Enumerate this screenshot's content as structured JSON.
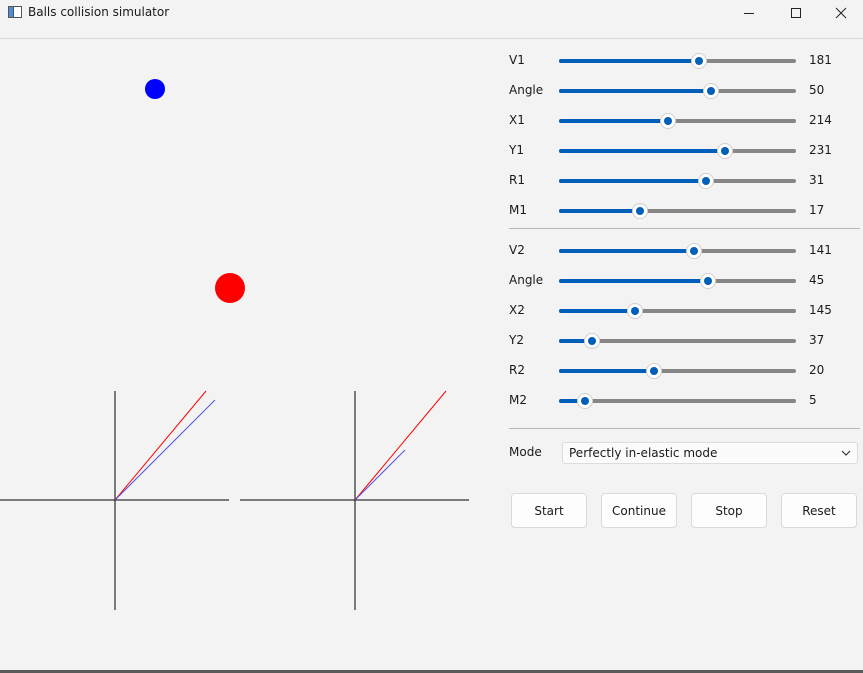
{
  "window": {
    "title": "Balls collision simulator"
  },
  "simulation": {
    "ball_colors": {
      "ball1": "#0000ff",
      "ball2": "#ff0000"
    },
    "ball1_vector_color": "#ff0000",
    "ball2_vector_color": "#5555dd"
  },
  "ball1": {
    "sliders": [
      {
        "label": "V1",
        "value": "181",
        "fraction": 0.59
      },
      {
        "label": "Angle",
        "value": "50",
        "fraction": 0.64
      },
      {
        "label": "X1",
        "value": "214",
        "fraction": 0.46
      },
      {
        "label": "Y1",
        "value": "231",
        "fraction": 0.7
      },
      {
        "label": "R1",
        "value": "31",
        "fraction": 0.62
      },
      {
        "label": "M1",
        "value": "17",
        "fraction": 0.34
      }
    ]
  },
  "ball2": {
    "sliders": [
      {
        "label": "V2",
        "value": "141",
        "fraction": 0.57
      },
      {
        "label": "Angle",
        "value": "45",
        "fraction": 0.63
      },
      {
        "label": "X2",
        "value": "145",
        "fraction": 0.32
      },
      {
        "label": "Y2",
        "value": "37",
        "fraction": 0.14
      },
      {
        "label": "R2",
        "value": "20",
        "fraction": 0.4
      },
      {
        "label": "M2",
        "value": "5",
        "fraction": 0.11
      }
    ]
  },
  "mode": {
    "label": "Mode",
    "selected": "Perfectly in-elastic mode"
  },
  "buttons": {
    "start": "Start",
    "continue": "Continue",
    "stop": "Stop",
    "reset": "Reset"
  },
  "theme": {
    "accent": "#005fb8",
    "track": "#868686"
  }
}
